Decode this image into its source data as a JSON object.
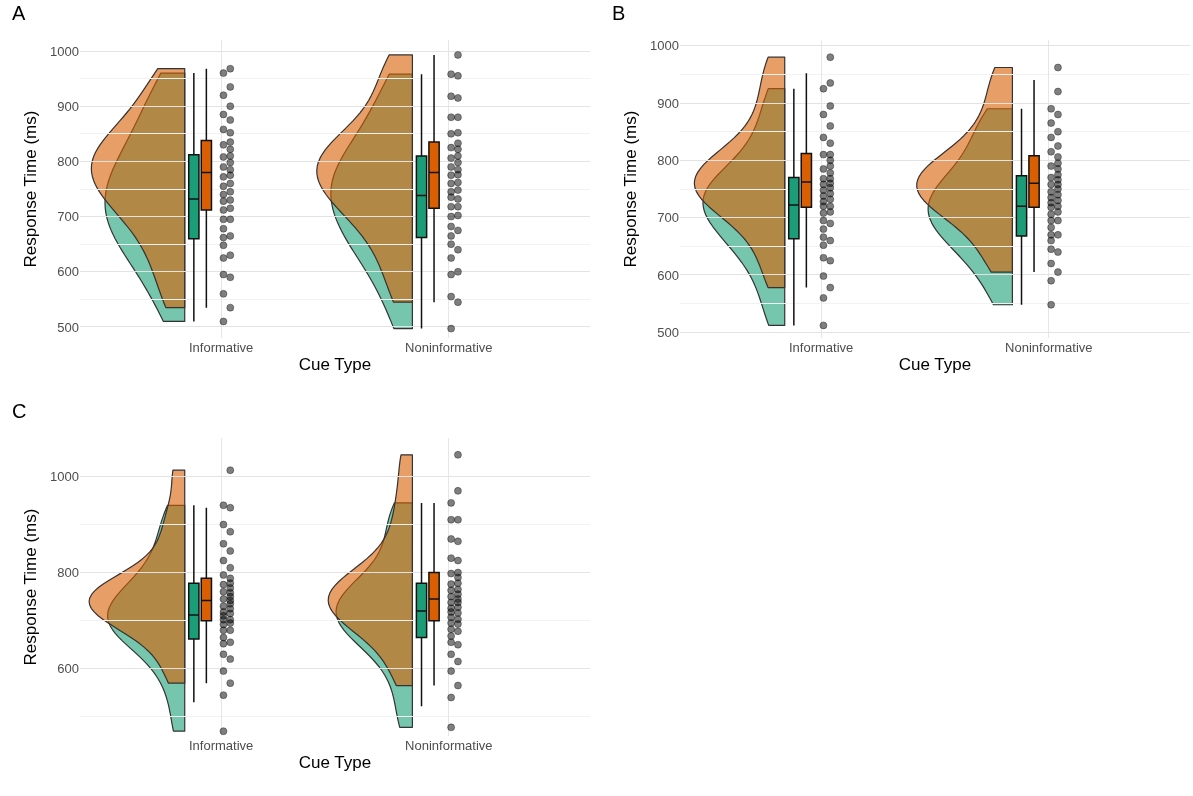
{
  "chart_data": [
    {
      "type": "box",
      "title": "A",
      "xlabel": "Cue Type",
      "ylabel": "Response Time (ms)",
      "categories": [
        "Informative",
        "Noninformative"
      ],
      "ylim": [
        480,
        1020
      ],
      "yticks": [
        500,
        600,
        700,
        800,
        900,
        1000
      ],
      "grid": true,
      "series": [
        {
          "color": "#1b9e77",
          "boxes": [
            {
              "low": 510,
              "q1": 660,
              "median": 732,
              "q3": 812,
              "high": 960
            },
            {
              "low": 497,
              "q1": 662,
              "median": 738,
              "q3": 810,
              "high": 958
            }
          ]
        },
        {
          "color": "#d95f02",
          "boxes": [
            {
              "low": 535,
              "q1": 712,
              "median": 780,
              "q3": 838,
              "high": 968
            },
            {
              "low": 545,
              "q1": 715,
              "median": 780,
              "q3": 835,
              "high": 993
            }
          ]
        },
        {
          "type": "scatter",
          "color": "#000000",
          "x": [
            "Informative",
            "Informative",
            "Informative",
            "Informative",
            "Informative",
            "Informative",
            "Informative",
            "Informative",
            "Informative",
            "Informative",
            "Informative",
            "Informative",
            "Informative",
            "Informative",
            "Informative",
            "Informative",
            "Informative",
            "Informative",
            "Informative",
            "Informative",
            "Noninformative",
            "Noninformative",
            "Noninformative",
            "Noninformative",
            "Noninformative",
            "Noninformative",
            "Noninformative",
            "Noninformative",
            "Noninformative",
            "Noninformative",
            "Noninformative",
            "Noninformative",
            "Noninformative",
            "Noninformative",
            "Noninformative",
            "Noninformative",
            "Noninformative",
            "Noninformative",
            "Noninformative",
            "Noninformative"
          ],
          "values": [
            510,
            560,
            595,
            625,
            648,
            662,
            678,
            695,
            712,
            728,
            740,
            755,
            772,
            790,
            808,
            830,
            858,
            885,
            920,
            960,
            497,
            555,
            595,
            625,
            650,
            665,
            682,
            700,
            718,
            735,
            745,
            760,
            775,
            790,
            806,
            825,
            850,
            880,
            918,
            958
          ]
        },
        {
          "type": "scatter",
          "color": "#000000",
          "x": [
            "Informative",
            "Informative",
            "Informative",
            "Informative",
            "Informative",
            "Informative",
            "Informative",
            "Informative",
            "Informative",
            "Informative",
            "Informative",
            "Informative",
            "Informative",
            "Informative",
            "Informative",
            "Informative",
            "Informative",
            "Informative",
            "Informative",
            "Informative",
            "Noninformative",
            "Noninformative",
            "Noninformative",
            "Noninformative",
            "Noninformative",
            "Noninformative",
            "Noninformative",
            "Noninformative",
            "Noninformative",
            "Noninformative",
            "Noninformative",
            "Noninformative",
            "Noninformative",
            "Noninformative",
            "Noninformative",
            "Noninformative",
            "Noninformative",
            "Noninformative",
            "Noninformative",
            "Noninformative"
          ],
          "values": [
            535,
            590,
            630,
            665,
            695,
            715,
            730,
            745,
            760,
            775,
            785,
            798,
            810,
            822,
            835,
            852,
            875,
            900,
            935,
            968,
            545,
            600,
            640,
            675,
            702,
            718,
            732,
            748,
            762,
            776,
            785,
            798,
            810,
            822,
            833,
            852,
            880,
            915,
            955,
            993
          ]
        }
      ]
    },
    {
      "type": "box",
      "title": "B",
      "xlabel": "Cue Type",
      "ylabel": "Response Time (ms)",
      "categories": [
        "Informative",
        "Noninformative"
      ],
      "ylim": [
        490,
        1010
      ],
      "yticks": [
        500,
        600,
        700,
        800,
        900,
        1000
      ],
      "grid": true,
      "series": [
        {
          "color": "#1b9e77",
          "boxes": [
            {
              "low": 512,
              "q1": 663,
              "median": 722,
              "q3": 770,
              "high": 925
            },
            {
              "low": 548,
              "q1": 668,
              "median": 720,
              "q3": 773,
              "high": 890
            }
          ]
        },
        {
          "color": "#d95f02",
          "boxes": [
            {
              "low": 578,
              "q1": 718,
              "median": 762,
              "q3": 812,
              "high": 952
            },
            {
              "low": 605,
              "q1": 718,
              "median": 760,
              "q3": 808,
              "high": 940
            }
          ]
        },
        {
          "type": "scatter",
          "color": "#000000",
          "x": [
            "Informative",
            "Informative",
            "Informative",
            "Informative",
            "Informative",
            "Informative",
            "Informative",
            "Informative",
            "Informative",
            "Informative",
            "Informative",
            "Informative",
            "Informative",
            "Informative",
            "Informative",
            "Informative",
            "Informative",
            "Informative",
            "Informative",
            "Informative",
            "Noninformative",
            "Noninformative",
            "Noninformative",
            "Noninformative",
            "Noninformative",
            "Noninformative",
            "Noninformative",
            "Noninformative",
            "Noninformative",
            "Noninformative",
            "Noninformative",
            "Noninformative",
            "Noninformative",
            "Noninformative",
            "Noninformative",
            "Noninformative",
            "Noninformative",
            "Noninformative",
            "Noninformative",
            "Noninformative"
          ],
          "values": [
            512,
            560,
            598,
            630,
            652,
            666,
            680,
            695,
            708,
            720,
            728,
            738,
            748,
            758,
            768,
            785,
            810,
            840,
            880,
            925,
            548,
            590,
            620,
            645,
            660,
            670,
            683,
            695,
            706,
            718,
            726,
            735,
            745,
            758,
            770,
            790,
            815,
            840,
            865,
            890
          ]
        },
        {
          "type": "scatter",
          "color": "#000000",
          "x": [
            "Informative",
            "Informative",
            "Informative",
            "Informative",
            "Informative",
            "Informative",
            "Informative",
            "Informative",
            "Informative",
            "Informative",
            "Informative",
            "Informative",
            "Informative",
            "Informative",
            "Informative",
            "Informative",
            "Informative",
            "Informative",
            "Informative",
            "Informative",
            "Noninformative",
            "Noninformative",
            "Noninformative",
            "Noninformative",
            "Noninformative",
            "Noninformative",
            "Noninformative",
            "Noninformative",
            "Noninformative",
            "Noninformative",
            "Noninformative",
            "Noninformative",
            "Noninformative",
            "Noninformative",
            "Noninformative",
            "Noninformative",
            "Noninformative",
            "Noninformative",
            "Noninformative",
            "Noninformative"
          ],
          "values": [
            578,
            625,
            660,
            690,
            710,
            720,
            732,
            742,
            752,
            760,
            768,
            778,
            790,
            800,
            810,
            830,
            860,
            895,
            935,
            980,
            605,
            640,
            670,
            695,
            710,
            720,
            730,
            740,
            750,
            758,
            766,
            775,
            785,
            795,
            806,
            825,
            850,
            880,
            920,
            962
          ]
        }
      ]
    },
    {
      "type": "box",
      "title": "C",
      "xlabel": "Cue Type",
      "ylabel": "Response Time (ms)",
      "categories": [
        "Informative",
        "Noninformative"
      ],
      "ylim": [
        460,
        1080
      ],
      "yticks": [
        600,
        800,
        1000
      ],
      "grid": true,
      "series": [
        {
          "color": "#1b9e77",
          "boxes": [
            {
              "low": 530,
              "q1": 662,
              "median": 712,
              "q3": 778,
              "high": 940
            },
            {
              "low": 522,
              "q1": 665,
              "median": 720,
              "q3": 778,
              "high": 945
            }
          ]
        },
        {
          "color": "#d95f02",
          "boxes": [
            {
              "low": 570,
              "q1": 700,
              "median": 742,
              "q3": 788,
              "high": 935
            },
            {
              "low": 565,
              "q1": 700,
              "median": 745,
              "q3": 800,
              "high": 945
            }
          ]
        },
        {
          "type": "scatter",
          "color": "#000000",
          "x": [
            "Informative",
            "Informative",
            "Informative",
            "Informative",
            "Informative",
            "Informative",
            "Informative",
            "Informative",
            "Informative",
            "Informative",
            "Informative",
            "Informative",
            "Informative",
            "Informative",
            "Informative",
            "Informative",
            "Informative",
            "Informative",
            "Informative",
            "Informative",
            "Noninformative",
            "Noninformative",
            "Noninformative",
            "Noninformative",
            "Noninformative",
            "Noninformative",
            "Noninformative",
            "Noninformative",
            "Noninformative",
            "Noninformative",
            "Noninformative",
            "Noninformative",
            "Noninformative",
            "Noninformative",
            "Noninformative",
            "Noninformative",
            "Noninformative",
            "Noninformative",
            "Noninformative",
            "Noninformative"
          ],
          "values": [
            470,
            545,
            595,
            630,
            652,
            665,
            680,
            692,
            702,
            710,
            718,
            730,
            745,
            760,
            775,
            795,
            825,
            860,
            900,
            940,
            478,
            540,
            595,
            630,
            655,
            668,
            682,
            695,
            707,
            718,
            726,
            738,
            750,
            763,
            776,
            798,
            830,
            870,
            910,
            945
          ]
        },
        {
          "type": "scatter",
          "color": "#000000",
          "x": [
            "Informative",
            "Informative",
            "Informative",
            "Informative",
            "Informative",
            "Informative",
            "Informative",
            "Informative",
            "Informative",
            "Informative",
            "Informative",
            "Informative",
            "Informative",
            "Informative",
            "Informative",
            "Informative",
            "Informative",
            "Informative",
            "Informative",
            "Informative",
            "Noninformative",
            "Noninformative",
            "Noninformative",
            "Noninformative",
            "Noninformative",
            "Noninformative",
            "Noninformative",
            "Noninformative",
            "Noninformative",
            "Noninformative",
            "Noninformative",
            "Noninformative",
            "Noninformative",
            "Noninformative",
            "Noninformative",
            "Noninformative",
            "Noninformative",
            "Noninformative",
            "Noninformative",
            "Noninformative"
          ],
          "values": [
            570,
            620,
            655,
            680,
            695,
            702,
            715,
            725,
            735,
            742,
            750,
            758,
            768,
            778,
            788,
            810,
            845,
            885,
            935,
            1013,
            565,
            615,
            650,
            678,
            693,
            703,
            716,
            728,
            738,
            745,
            755,
            765,
            778,
            790,
            800,
            825,
            865,
            910,
            970,
            1045
          ]
        }
      ]
    }
  ]
}
